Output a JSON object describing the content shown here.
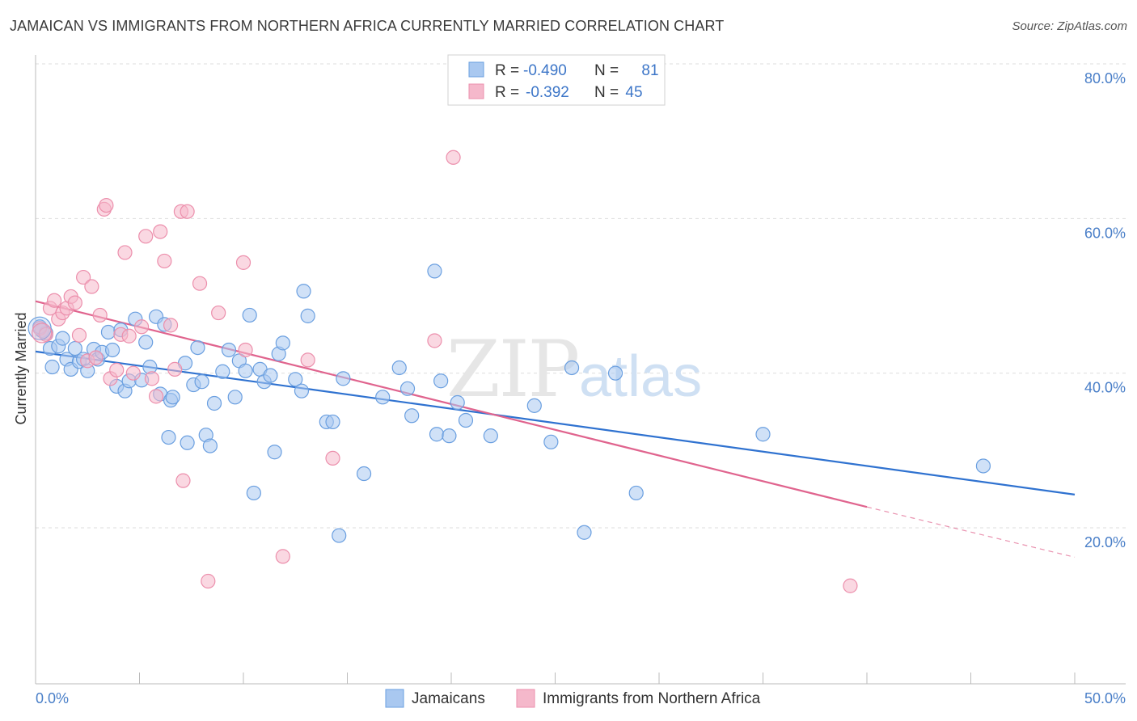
{
  "header": {
    "title": "JAMAICAN VS IMMIGRANTS FROM NORTHERN AFRICA CURRENTLY MARRIED CORRELATION CHART",
    "source": "Source: ZipAtlas.com"
  },
  "watermark": {
    "zip": "ZIP",
    "atlas": "atlas"
  },
  "stats_legend": {
    "rows": [
      {
        "r_label": "R =",
        "r_value": "-0.490",
        "n_label": "N =",
        "n_value": "81",
        "color": "#a9c8f0"
      },
      {
        "r_label": "R =",
        "r_value": "-0.392",
        "n_label": "N =",
        "n_value": "45",
        "color": "#f5b8cb"
      }
    ]
  },
  "chart_data": {
    "type": "scatter",
    "ylabel": "Currently Married",
    "x_ticks": [
      "0.0%",
      "50.0%"
    ],
    "y_ticks": [
      {
        "value": 20,
        "label": "20.0%"
      },
      {
        "value": 40,
        "label": "40.0%"
      },
      {
        "value": 60,
        "label": "60.0%"
      },
      {
        "value": 80,
        "label": "80.0%"
      }
    ],
    "xlim": [
      0,
      50
    ],
    "ylim": [
      0,
      84
    ],
    "grid": true,
    "series": [
      {
        "name": "Jamaicans",
        "color": "#6a9fe0",
        "fill": "#a9c8f0",
        "line_color": "#2f72d0",
        "trend": {
          "x0": 0,
          "y0": 42.8,
          "x1": 50,
          "y1": 24.3
        },
        "points": [
          [
            0.3,
            45.5
          ],
          [
            0.5,
            45.2
          ],
          [
            0.7,
            43.2
          ],
          [
            0.8,
            40.8
          ],
          [
            1.1,
            43.5
          ],
          [
            1.3,
            44.5
          ],
          [
            1.5,
            41.8
          ],
          [
            1.7,
            40.5
          ],
          [
            1.9,
            43.2
          ],
          [
            2.1,
            41.5
          ],
          [
            2.3,
            41.8
          ],
          [
            2.5,
            40.3
          ],
          [
            2.8,
            43.1
          ],
          [
            3.0,
            41.8
          ],
          [
            3.2,
            42.7
          ],
          [
            3.5,
            45.3
          ],
          [
            3.7,
            43.0
          ],
          [
            3.9,
            38.3
          ],
          [
            4.1,
            45.6
          ],
          [
            4.3,
            37.7
          ],
          [
            4.5,
            39.0
          ],
          [
            4.8,
            47.0
          ],
          [
            5.1,
            39.1
          ],
          [
            5.3,
            44.0
          ],
          [
            5.5,
            40.8
          ],
          [
            5.8,
            47.3
          ],
          [
            6.0,
            37.3
          ],
          [
            6.2,
            46.3
          ],
          [
            6.5,
            36.5
          ],
          [
            6.6,
            36.9
          ],
          [
            6.4,
            31.7
          ],
          [
            7.2,
            41.3
          ],
          [
            7.3,
            31.0
          ],
          [
            7.6,
            38.5
          ],
          [
            7.8,
            43.3
          ],
          [
            8.0,
            38.9
          ],
          [
            8.2,
            32.0
          ],
          [
            8.4,
            30.6
          ],
          [
            8.6,
            36.1
          ],
          [
            9.0,
            40.2
          ],
          [
            9.3,
            43.0
          ],
          [
            9.6,
            36.9
          ],
          [
            9.8,
            41.6
          ],
          [
            10.1,
            40.3
          ],
          [
            10.3,
            47.5
          ],
          [
            10.5,
            24.5
          ],
          [
            10.8,
            40.5
          ],
          [
            11.0,
            38.9
          ],
          [
            11.3,
            39.7
          ],
          [
            11.5,
            29.8
          ],
          [
            11.7,
            42.5
          ],
          [
            11.9,
            43.9
          ],
          [
            12.5,
            39.2
          ],
          [
            12.8,
            37.7
          ],
          [
            12.9,
            50.6
          ],
          [
            13.1,
            47.4
          ],
          [
            14.0,
            33.7
          ],
          [
            14.3,
            33.7
          ],
          [
            14.6,
            19.0
          ],
          [
            14.8,
            39.3
          ],
          [
            15.8,
            27.0
          ],
          [
            16.7,
            36.9
          ],
          [
            17.5,
            40.7
          ],
          [
            17.9,
            38.0
          ],
          [
            18.1,
            34.5
          ],
          [
            19.3,
            32.1
          ],
          [
            19.2,
            53.2
          ],
          [
            19.5,
            39.0
          ],
          [
            19.9,
            31.9
          ],
          [
            20.3,
            36.2
          ],
          [
            20.7,
            33.9
          ],
          [
            21.9,
            31.9
          ],
          [
            24.0,
            35.8
          ],
          [
            24.8,
            31.1
          ],
          [
            25.8,
            40.7
          ],
          [
            26.4,
            19.4
          ],
          [
            27.9,
            40.0
          ],
          [
            28.9,
            24.5
          ],
          [
            35.0,
            32.1
          ],
          [
            45.6,
            28.0
          ],
          [
            0.2,
            46.0
          ]
        ]
      },
      {
        "name": "Immigrants from Northern Africa",
        "color": "#ec8fac",
        "fill": "#f5b8cb",
        "line_color": "#e0648e",
        "trend": {
          "x0": 0,
          "y0": 49.3,
          "x1": 40.0,
          "y1": 22.7
        },
        "trend_dash_end": {
          "x": 50,
          "y": 16.2
        },
        "points": [
          [
            0.2,
            45.8
          ],
          [
            0.5,
            45.0
          ],
          [
            0.7,
            48.4
          ],
          [
            0.9,
            49.4
          ],
          [
            1.1,
            47.0
          ],
          [
            1.3,
            47.8
          ],
          [
            1.5,
            48.4
          ],
          [
            1.7,
            49.9
          ],
          [
            1.9,
            49.1
          ],
          [
            2.1,
            44.9
          ],
          [
            2.3,
            52.4
          ],
          [
            2.5,
            41.6
          ],
          [
            2.7,
            51.2
          ],
          [
            2.9,
            42.0
          ],
          [
            3.1,
            47.5
          ],
          [
            3.3,
            61.2
          ],
          [
            3.4,
            61.7
          ],
          [
            3.6,
            39.3
          ],
          [
            3.9,
            40.4
          ],
          [
            4.1,
            45.0
          ],
          [
            4.3,
            55.6
          ],
          [
            4.5,
            44.8
          ],
          [
            4.7,
            40.0
          ],
          [
            5.1,
            46.0
          ],
          [
            5.3,
            57.7
          ],
          [
            5.6,
            39.3
          ],
          [
            5.8,
            37.0
          ],
          [
            6.0,
            58.3
          ],
          [
            6.2,
            54.5
          ],
          [
            6.5,
            46.2
          ],
          [
            6.7,
            40.5
          ],
          [
            7.0,
            60.9
          ],
          [
            7.1,
            26.1
          ],
          [
            7.3,
            60.9
          ],
          [
            7.9,
            51.6
          ],
          [
            8.3,
            13.1
          ],
          [
            8.8,
            47.8
          ],
          [
            10.0,
            54.3
          ],
          [
            10.1,
            43.0
          ],
          [
            11.9,
            16.3
          ],
          [
            13.1,
            41.7
          ],
          [
            14.3,
            29.0
          ],
          [
            19.2,
            44.2
          ],
          [
            20.1,
            67.9
          ],
          [
            39.2,
            12.5
          ]
        ]
      }
    ]
  }
}
